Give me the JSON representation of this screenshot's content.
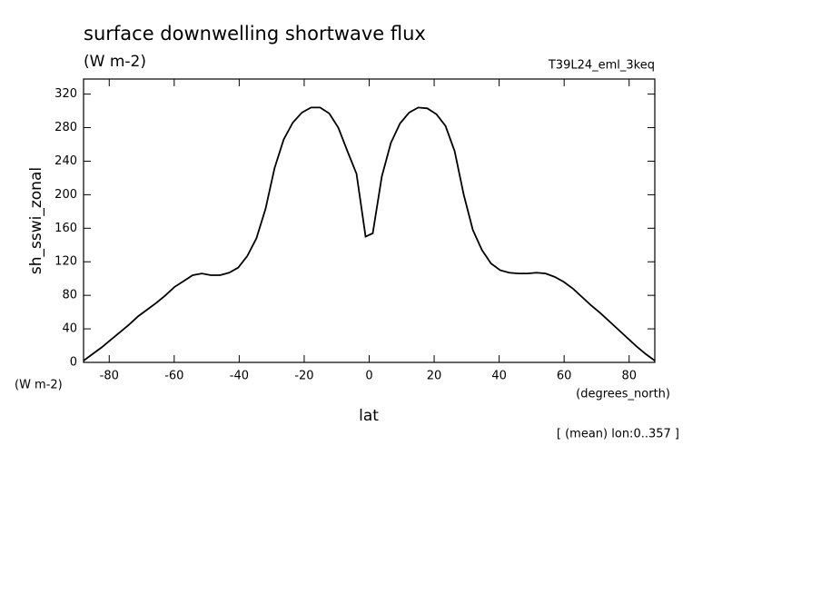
{
  "chart_data": {
    "type": "line",
    "title": "surface downwelling shortwave flux",
    "units": "(W m-2)",
    "dataset": "T39L24_eml_3keq",
    "ylabel": "sh_sswi_zonal",
    "y_units": "(W m-2)",
    "xlabel": "lat",
    "x_units": "(degrees_north)",
    "footnote": "[ (mean) lon:0..357 ]",
    "x": [
      -87.9,
      -85.1,
      -82.3,
      -79.5,
      -76.7,
      -73.9,
      -71.1,
      -68.3,
      -65.5,
      -62.7,
      -59.9,
      -57.1,
      -54.3,
      -51.5,
      -48.7,
      -45.9,
      -43.1,
      -40.3,
      -37.5,
      -34.7,
      -31.9,
      -29.1,
      -26.3,
      -23.5,
      -20.7,
      -17.9,
      -15.1,
      -12.3,
      -9.5,
      -6.7,
      -3.9,
      -1.1,
      1.1,
      3.9,
      6.7,
      9.5,
      12.3,
      15.1,
      17.9,
      20.7,
      23.5,
      26.3,
      29.1,
      31.9,
      34.7,
      37.5,
      40.3,
      43.1,
      45.9,
      48.7,
      51.5,
      54.3,
      57.1,
      59.9,
      62.7,
      65.5,
      68.3,
      71.1,
      73.9,
      76.7,
      79.5,
      82.3,
      85.1,
      87.9
    ],
    "series": [
      {
        "color": "#000000",
        "values": [
          2,
          10,
          18,
          27,
          36,
          45,
          55,
          63,
          71,
          80,
          90,
          97,
          104,
          106,
          104,
          104,
          107,
          113,
          127,
          148,
          183,
          232,
          266,
          286,
          298,
          304,
          304,
          297,
          280,
          252,
          225,
          150,
          154,
          222,
          262,
          285,
          298,
          304,
          303,
          296,
          282,
          252,
          200,
          158,
          134,
          118,
          110,
          107,
          106,
          106,
          107,
          106,
          102,
          96,
          88,
          78,
          68,
          59,
          49,
          39,
          29,
          19,
          10,
          2
        ]
      }
    ],
    "xlim": [
      -87.9,
      87.9
    ],
    "xticks": [
      -80,
      -60,
      -40,
      -20,
      0,
      20,
      40,
      60,
      80
    ],
    "ylim": [
      0,
      338
    ],
    "yticks": [
      0,
      40,
      80,
      120,
      160,
      200,
      240,
      280,
      320
    ]
  }
}
